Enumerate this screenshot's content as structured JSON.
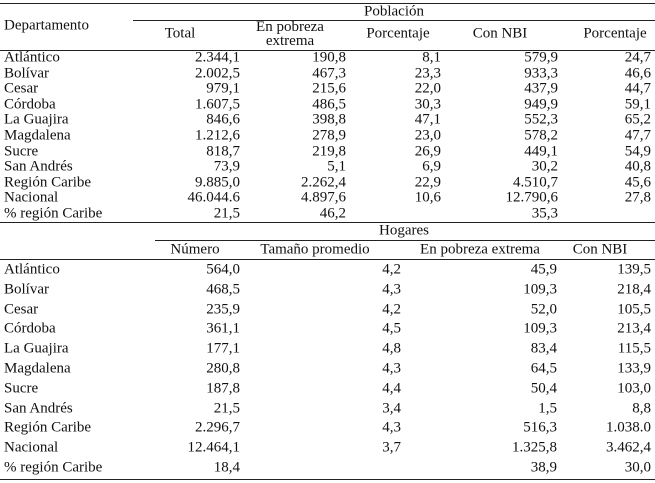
{
  "population": {
    "title": "Población",
    "row_header": "Departamento",
    "columns": [
      "Total",
      "En pobreza extrema",
      "Porcentaje",
      "Con NBI",
      "Porcentaje"
    ],
    "rows": [
      {
        "label": "Atlántico",
        "values": [
          "2.344,1",
          "190,8",
          "8,1",
          "579,9",
          "24,7"
        ]
      },
      {
        "label": "Bolívar",
        "values": [
          "2.002,5",
          "467,3",
          "23,3",
          "933,3",
          "46,6"
        ]
      },
      {
        "label": "Cesar",
        "values": [
          "979,1",
          "215,6",
          "22,0",
          "437,9",
          "44,7"
        ]
      },
      {
        "label": "Córdoba",
        "values": [
          "1.607,5",
          "486,5",
          "30,3",
          "949,9",
          "59,1"
        ]
      },
      {
        "label": "La Guajira",
        "values": [
          "846,6",
          "398,8",
          "47,1",
          "552,3",
          "65,2"
        ]
      },
      {
        "label": "Magdalena",
        "values": [
          "1.212,6",
          "278,9",
          "23,0",
          "578,2",
          "47,7"
        ]
      },
      {
        "label": "Sucre",
        "values": [
          "818,7",
          "219,8",
          "26,9",
          "449,1",
          "54,9"
        ]
      },
      {
        "label": "San Andrés",
        "values": [
          "73,9",
          "5,1",
          "6,9",
          "30,2",
          "40,8"
        ]
      },
      {
        "label": "Región Caribe",
        "values": [
          "9.885,0",
          "2.262,4",
          "22,9",
          "4.510,7",
          "45,6"
        ]
      },
      {
        "label": "Nacional",
        "values": [
          "46.044.6",
          "4.897,6",
          "10,6",
          "12.790,6",
          "27,8"
        ]
      },
      {
        "label": "% región Caribe",
        "values": [
          "21,5",
          "46,2",
          null,
          "35,3",
          null
        ]
      }
    ]
  },
  "households": {
    "title": "Hogares",
    "columns": [
      "Número",
      "Tamaño promedio",
      "En pobreza extrema",
      "Con NBI"
    ],
    "rows": [
      {
        "label": "Atlántico",
        "values": [
          "564,0",
          "4,2",
          "45,9",
          "139,5"
        ]
      },
      {
        "label": "Bolívar",
        "values": [
          "468,5",
          "4,3",
          "109,3",
          "218,4"
        ]
      },
      {
        "label": "Cesar",
        "values": [
          "235,9",
          "4,2",
          "52,0",
          "105,5"
        ]
      },
      {
        "label": "Córdoba",
        "values": [
          "361,1",
          "4,5",
          "109,3",
          "213,4"
        ]
      },
      {
        "label": "La Guajira",
        "values": [
          "177,1",
          "4,8",
          "83,4",
          "115,5"
        ]
      },
      {
        "label": "Magdalena",
        "values": [
          "280,8",
          "4,3",
          "64,5",
          "133,9"
        ]
      },
      {
        "label": "Sucre",
        "values": [
          "187,8",
          "4,4",
          "50,4",
          "103,0"
        ]
      },
      {
        "label": "San Andrés",
        "values": [
          "21,5",
          "3,4",
          "1,5",
          "8,8"
        ]
      },
      {
        "label": "Región Caribe",
        "values": [
          "2.296,7",
          "4,3",
          "516,3",
          "1.038.0"
        ]
      },
      {
        "label": "Nacional",
        "values": [
          "12.464,1",
          "3,7",
          "1.325,8",
          "3.462,4"
        ]
      },
      {
        "label": "% región Caribe",
        "values": [
          "18,4",
          null,
          "38,9",
          "30,0"
        ]
      }
    ]
  }
}
